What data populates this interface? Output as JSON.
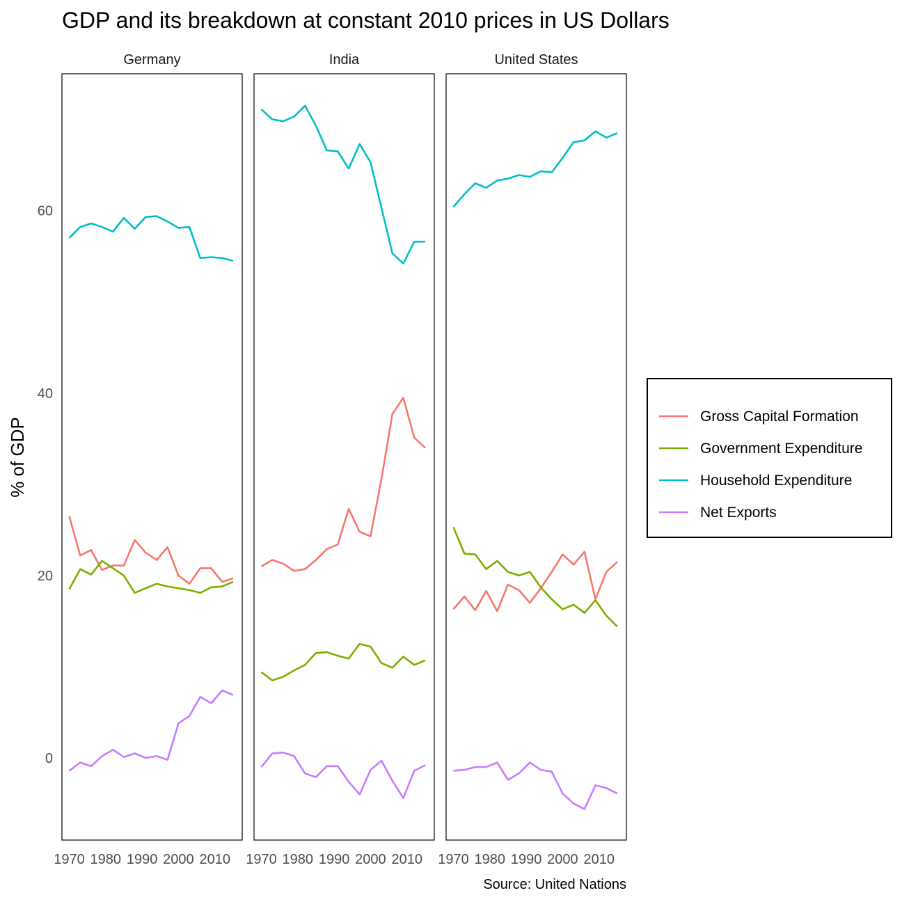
{
  "chart_data": {
    "type": "line",
    "title": "GDP and its breakdown at constant 2010 prices in US Dollars",
    "ylabel": "% of GDP",
    "caption": "Source: United Nations",
    "ylim": [
      -9,
      75
    ],
    "y_ticks": [
      0,
      20,
      40,
      60
    ],
    "x_ticks": [
      1970,
      1980,
      1990,
      2000,
      2010
    ],
    "xlim": [
      1968,
      2017.5
    ],
    "legend_position": "right",
    "legend": [
      {
        "name": "Gross Capital Formation",
        "color": "#F8766D"
      },
      {
        "name": "Government Expenditure",
        "color": "#7CAE00"
      },
      {
        "name": "Household Expenditure",
        "color": "#00BFC4"
      },
      {
        "name": "Net Exports",
        "color": "#C77CFF"
      }
    ],
    "x": [
      1970,
      1973,
      1976,
      1979,
      1982,
      1985,
      1988,
      1991,
      1994,
      1997,
      2000,
      2003,
      2006,
      2009,
      2012,
      2015
    ],
    "panels": [
      {
        "name": "Germany",
        "series": [
          {
            "name": "Gross Capital Formation",
            "values": [
              26.5,
              22.2,
              22.8,
              20.6,
              21.1,
              21.1,
              23.9,
              22.5,
              21.7,
              23.1,
              20.0,
              19.1,
              20.8,
              20.8,
              19.3,
              19.7
            ]
          },
          {
            "name": "Government Expenditure",
            "values": [
              18.5,
              20.7,
              20.1,
              21.6,
              20.8,
              20.0,
              18.1,
              18.6,
              19.1,
              18.8,
              18.6,
              18.4,
              18.1,
              18.7,
              18.8,
              19.3
            ]
          },
          {
            "name": "Household Expenditure",
            "values": [
              57.0,
              58.2,
              58.6,
              58.2,
              57.7,
              59.2,
              58.0,
              59.3,
              59.4,
              58.8,
              58.1,
              58.2,
              54.8,
              54.9,
              54.8,
              54.5
            ]
          },
          {
            "name": "Net Exports",
            "values": [
              -1.4,
              -0.5,
              -0.9,
              0.2,
              0.9,
              0.1,
              0.5,
              0.0,
              0.2,
              -0.2,
              3.8,
              4.6,
              6.7,
              6.0,
              7.4,
              6.9
            ]
          }
        ]
      },
      {
        "name": "India",
        "series": [
          {
            "name": "Gross Capital Formation",
            "values": [
              21.0,
              21.7,
              21.3,
              20.5,
              20.7,
              21.7,
              22.9,
              23.4,
              27.3,
              24.8,
              24.3,
              30.6,
              37.7,
              39.5,
              35.1,
              34.0
            ]
          },
          {
            "name": "Government Expenditure",
            "values": [
              9.4,
              8.5,
              8.9,
              9.6,
              10.2,
              11.5,
              11.6,
              11.2,
              10.9,
              12.5,
              12.2,
              10.4,
              9.9,
              11.1,
              10.2,
              10.7
            ]
          },
          {
            "name": "Household Expenditure",
            "values": [
              71.1,
              70.0,
              69.8,
              70.3,
              71.5,
              69.3,
              66.6,
              66.5,
              64.6,
              67.3,
              65.3,
              60.3,
              55.3,
              54.2,
              56.6,
              56.6
            ]
          },
          {
            "name": "Net Exports",
            "values": [
              -1.0,
              0.5,
              0.6,
              0.2,
              -1.7,
              -2.1,
              -0.9,
              -0.9,
              -2.6,
              -4.0,
              -1.3,
              -0.3,
              -2.5,
              -4.4,
              -1.4,
              -0.8
            ]
          }
        ]
      },
      {
        "name": "United States",
        "series": [
          {
            "name": "Gross Capital Formation",
            "values": [
              16.3,
              17.7,
              16.2,
              18.3,
              16.1,
              19.0,
              18.4,
              17.0,
              18.6,
              20.4,
              22.3,
              21.2,
              22.6,
              17.4,
              20.4,
              21.5
            ]
          },
          {
            "name": "Government Expenditure",
            "values": [
              25.3,
              22.4,
              22.3,
              20.7,
              21.6,
              20.4,
              20.0,
              20.4,
              18.7,
              17.4,
              16.3,
              16.8,
              15.9,
              17.3,
              15.6,
              14.4
            ]
          },
          {
            "name": "Household Expenditure",
            "values": [
              60.4,
              61.8,
              63.0,
              62.5,
              63.3,
              63.5,
              63.9,
              63.7,
              64.3,
              64.2,
              65.8,
              67.5,
              67.7,
              68.7,
              68.0,
              68.5
            ]
          },
          {
            "name": "Net Exports",
            "values": [
              -1.4,
              -1.3,
              -1.0,
              -1.0,
              -0.5,
              -2.4,
              -1.7,
              -0.5,
              -1.3,
              -1.5,
              -3.9,
              -5.0,
              -5.6,
              -3.0,
              -3.3,
              -3.9
            ]
          }
        ]
      }
    ]
  }
}
